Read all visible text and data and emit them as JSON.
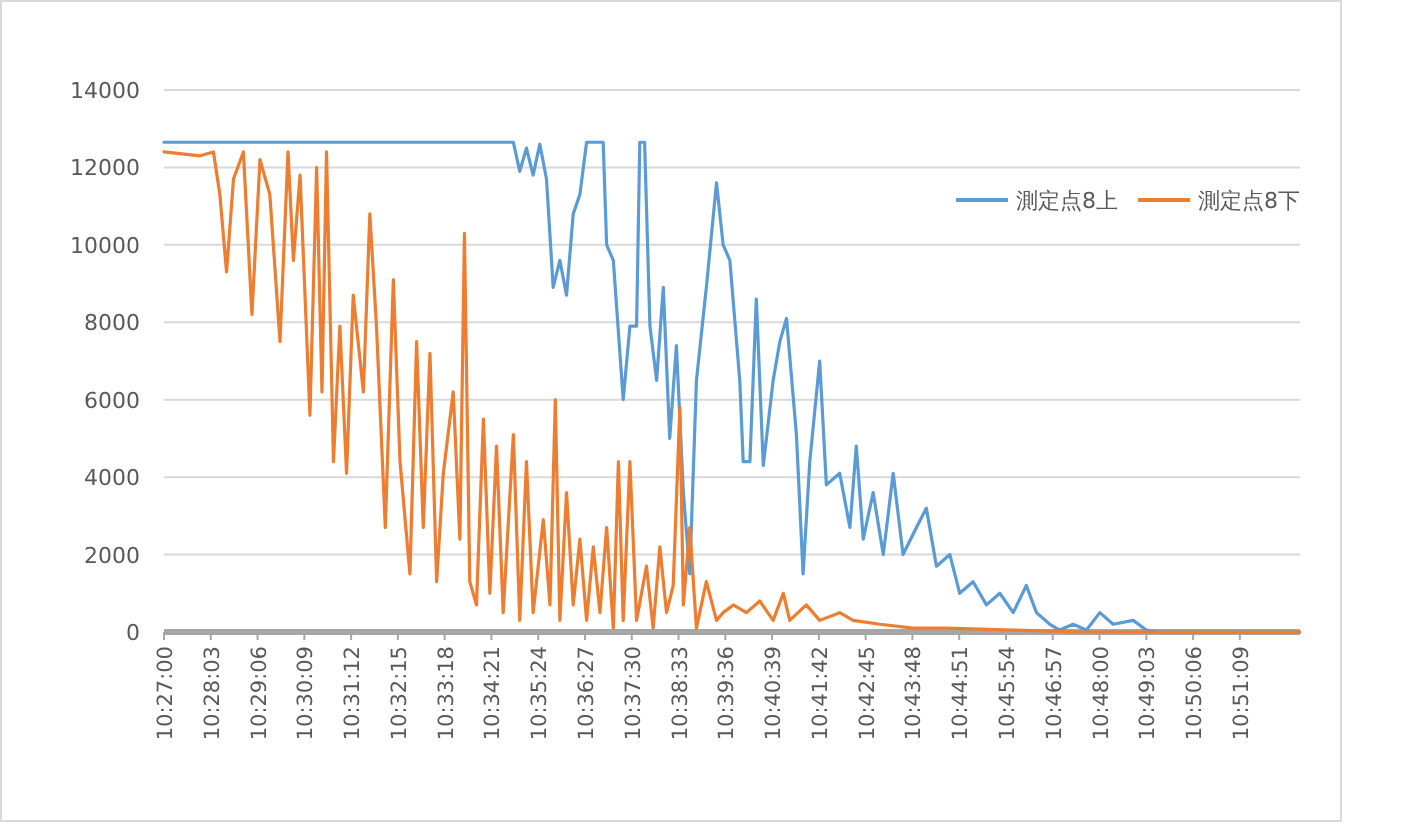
{
  "chart_data": {
    "type": "line",
    "xlim": [
      10.45,
      10.875
    ],
    "xticks": [
      {
        "value": 10.45,
        "label": "10:27:00"
      },
      {
        "value": 10.4675,
        "label": "10:28:03"
      },
      {
        "value": 10.485,
        "label": "10:29:06"
      },
      {
        "value": 10.5025,
        "label": "10:30:09"
      },
      {
        "value": 10.52,
        "label": "10:31:12"
      },
      {
        "value": 10.5375,
        "label": "10:32:15"
      },
      {
        "value": 10.555,
        "label": "10:33:18"
      },
      {
        "value": 10.5725,
        "label": "10:34:21"
      },
      {
        "value": 10.59,
        "label": "10:35:24"
      },
      {
        "value": 10.6075,
        "label": "10:36:27"
      },
      {
        "value": 10.625,
        "label": "10:37:30"
      },
      {
        "value": 10.6425,
        "label": "10:38:33"
      },
      {
        "value": 10.66,
        "label": "10:39:36"
      },
      {
        "value": 10.6775,
        "label": "10:40:39"
      },
      {
        "value": 10.695,
        "label": "10:41:42"
      },
      {
        "value": 10.7125,
        "label": "10:42:45"
      },
      {
        "value": 10.73,
        "label": "10:43:48"
      },
      {
        "value": 10.7475,
        "label": "10:44:51"
      },
      {
        "value": 10.765,
        "label": "10:45:54"
      },
      {
        "value": 10.7825,
        "label": "10:46:57"
      },
      {
        "value": 10.8,
        "label": "10:48:00"
      },
      {
        "value": 10.8175,
        "label": "10:49:03"
      },
      {
        "value": 10.835,
        "label": "10:50:06"
      },
      {
        "value": 10.8525,
        "label": "10:51:09"
      }
    ],
    "ylim": [
      0,
      14000
    ],
    "yticks": [
      0,
      2000,
      4000,
      6000,
      8000,
      10000,
      12000,
      14000
    ],
    "grid": "y",
    "legend": "top right",
    "series": [
      {
        "name": "測定点8上",
        "color": "#5b9bd5",
        "x": [
          10.45,
          10.5807,
          10.5831,
          10.5856,
          10.5881,
          10.5906,
          10.5931,
          10.5956,
          10.5981,
          10.6006,
          10.6031,
          10.6056,
          10.6081,
          10.6143,
          10.6156,
          10.6181,
          10.6218,
          10.6243,
          10.6268,
          10.628,
          10.6298,
          10.6318,
          10.6343,
          10.6368,
          10.6392,
          10.6417,
          10.6443,
          10.6467,
          10.6492,
          10.6529,
          10.6567,
          10.6592,
          10.6617,
          10.6654,
          10.6667,
          10.6692,
          10.6716,
          10.6742,
          10.6779,
          10.6804,
          10.6829,
          10.6866,
          10.6891,
          10.6916,
          10.6953,
          10.6978,
          10.7028,
          10.7066,
          10.709,
          10.7116,
          10.7153,
          10.7191,
          10.7228,
          10.7265,
          10.7315,
          10.7352,
          10.739,
          10.744,
          10.7477,
          10.7527,
          10.7577,
          10.7627,
          10.7677,
          10.7726,
          10.7764,
          10.7814,
          10.7851,
          10.7901,
          10.7951,
          10.8001,
          10.8051,
          10.8126,
          10.8175,
          10.8225,
          10.8749
        ],
        "values": [
          12650,
          12650,
          11900,
          12500,
          11800,
          12600,
          11700,
          8900,
          9600,
          8700,
          10800,
          11300,
          12650,
          12650,
          10000,
          9600,
          6000,
          7900,
          7900,
          12650,
          12650,
          7900,
          6500,
          8900,
          5000,
          7400,
          3600,
          1500,
          6500,
          8900,
          11600,
          10000,
          9600,
          6500,
          4400,
          4400,
          8600,
          4300,
          6500,
          7500,
          8100,
          5100,
          1500,
          4400,
          7000,
          3800,
          4100,
          2700,
          4800,
          2400,
          3600,
          2000,
          4100,
          2000,
          2700,
          3200,
          1700,
          2000,
          1000,
          1300,
          700,
          1000,
          500,
          1200,
          500,
          200,
          50,
          200,
          50,
          500,
          200,
          300,
          50,
          0,
          0
        ]
      },
      {
        "name": "測定点8下",
        "color": "#ed7d31",
        "x": [
          10.45,
          10.4635,
          10.4685,
          10.4709,
          10.4734,
          10.476,
          10.4797,
          10.4829,
          10.4859,
          10.4896,
          10.4934,
          10.4964,
          10.4984,
          10.5009,
          10.5046,
          10.5071,
          10.5091,
          10.5108,
          10.5134,
          10.5158,
          10.5183,
          10.5208,
          10.5246,
          10.527,
          10.5295,
          10.5328,
          10.5358,
          10.5383,
          10.542,
          10.5445,
          10.547,
          10.5495,
          10.552,
          10.5545,
          10.5582,
          10.5607,
          10.5624,
          10.5644,
          10.5669,
          10.5695,
          10.5719,
          10.5744,
          10.5769,
          10.5807,
          10.5831,
          10.5856,
          10.5881,
          10.5919,
          10.5944,
          10.5964,
          10.5981,
          10.6006,
          10.6031,
          10.6056,
          10.6081,
          10.6106,
          10.6131,
          10.6156,
          10.6181,
          10.62,
          10.6218,
          10.6243,
          10.6268,
          10.6305,
          10.633,
          10.6355,
          10.638,
          10.6405,
          10.643,
          10.6443,
          10.6467,
          10.6492,
          10.6529,
          10.6567,
          10.6592,
          10.663,
          10.6679,
          10.6729,
          10.6779,
          10.6817,
          10.6841,
          10.6903,
          10.6953,
          10.7028,
          10.7078,
          10.7178,
          10.7303,
          10.7427,
          10.7677,
          10.7926,
          10.8749
        ],
        "values": [
          12400,
          12300,
          12400,
          11300,
          9300,
          11700,
          12400,
          8200,
          12200,
          11300,
          7500,
          12400,
          9600,
          11800,
          5600,
          12000,
          6200,
          12400,
          4400,
          7900,
          4100,
          8700,
          6200,
          10800,
          7900,
          2700,
          9100,
          4400,
          1500,
          7500,
          2700,
          7200,
          1300,
          4100,
          6200,
          2400,
          10300,
          1300,
          700,
          5500,
          1000,
          4800,
          500,
          5100,
          300,
          4400,
          500,
          2900,
          700,
          6000,
          300,
          3600,
          700,
          2400,
          300,
          2200,
          500,
          2700,
          100,
          4400,
          300,
          4400,
          300,
          1700,
          100,
          2200,
          500,
          1200,
          5800,
          700,
          2700,
          100,
          1300,
          300,
          500,
          700,
          500,
          800,
          300,
          1000,
          300,
          700,
          300,
          500,
          300,
          200,
          100,
          100,
          50,
          0,
          0
        ]
      }
    ]
  }
}
